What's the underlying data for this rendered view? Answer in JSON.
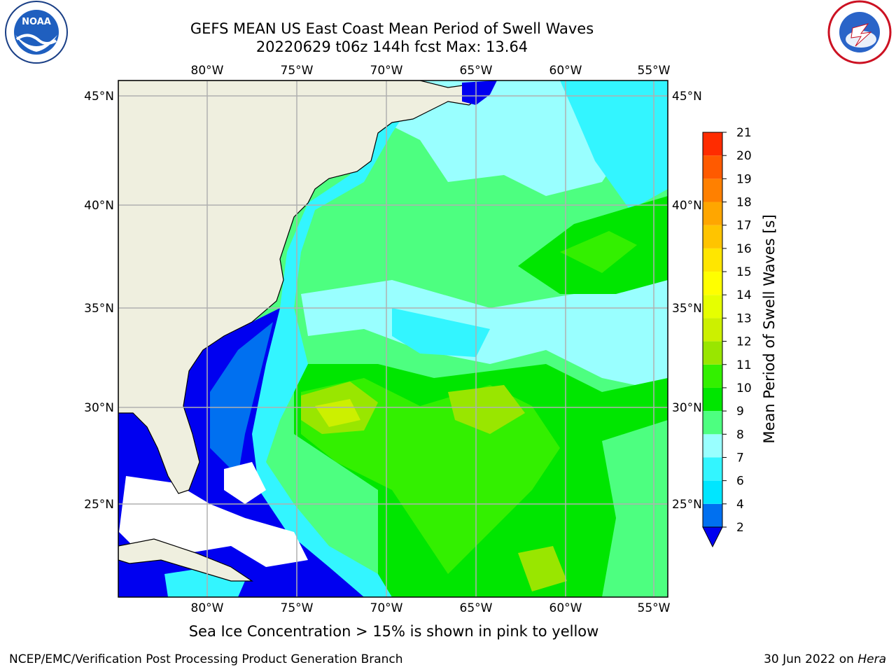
{
  "title_line1": "GEFS MEAN US East Coast Mean Period of Swell Waves",
  "title_line2": "20220629 t06z 144h fcst   Max: 13.64",
  "map": {
    "lon_labels": [
      "80°W",
      "75°W",
      "70°W",
      "65°W",
      "60°W",
      "55°W"
    ],
    "lat_labels": [
      "45°N",
      "40°N",
      "35°N",
      "30°N",
      "25°N"
    ],
    "land_color": "#efefdf",
    "grid_color": "#b0b0b0"
  },
  "colorbar": {
    "label": "Mean Period of Swell Waves [s]",
    "ticks": [
      "2",
      "4",
      "6",
      "7",
      "8",
      "9",
      "10",
      "11",
      "12",
      "13",
      "14",
      "15",
      "16",
      "17",
      "18",
      "19",
      "20",
      "21"
    ],
    "colors": [
      "#0070f0",
      "#00e6ff",
      "#33f5ff",
      "#99ffff",
      "#4dff80",
      "#00e600",
      "#33f000",
      "#99e600",
      "#ccf000",
      "#e6ff00",
      "#ffff00",
      "#ffe600",
      "#ffc400",
      "#ffa600",
      "#ff8000",
      "#ff5a00",
      "#ff2c00",
      "#ff0000"
    ],
    "extend_color": "#0000f0"
  },
  "note": "Sea Ice Concentration > 15% is shown in pink to yellow",
  "credit_left": "NCEP/EMC/Verification Post Processing Product Generation Branch",
  "credit_right_date": "30 Jun 2022 on ",
  "credit_right_machine": "Hera",
  "logos": {
    "noaa": "NOAA",
    "nws": "NATIONAL WEATHER SERVICE"
  }
}
